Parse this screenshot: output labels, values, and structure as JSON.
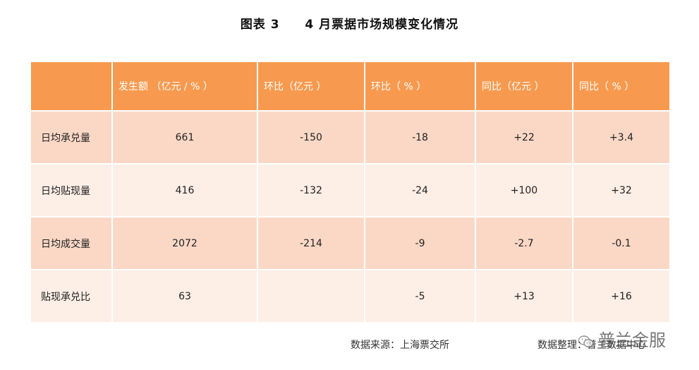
{
  "title": {
    "prefix": "图表",
    "number": "3",
    "text": "4 月票据市场规模变化情况"
  },
  "table": {
    "headers": [
      "",
      "发生额 （亿元 / % ）",
      "环比（亿元 ）",
      "环比（ % ）",
      "同比（亿元 ）",
      "同比（ % ）"
    ],
    "rows": [
      [
        "日均承兑量",
        "661",
        "-150",
        "-18",
        "+22",
        "+3.4"
      ],
      [
        "日均贴现量",
        "416",
        "-132",
        "-24",
        "+100",
        "+32"
      ],
      [
        "日均成交量",
        "2072",
        "-214",
        "-9",
        "-2.7",
        "-0.1"
      ],
      [
        "贴现承兑比",
        "63",
        "",
        "-5",
        "+13",
        "+16"
      ]
    ]
  },
  "footer": {
    "source": "数据来源：上海票交所",
    "compiler": "数据整理：普兰数据中心"
  },
  "watermark": {
    "text": "普兰金服",
    "icon": "wechat-icon"
  },
  "colors": {
    "header_bg": "#f79a4f",
    "row_dark": "#fbd8c6",
    "row_light": "#fdeee6"
  }
}
